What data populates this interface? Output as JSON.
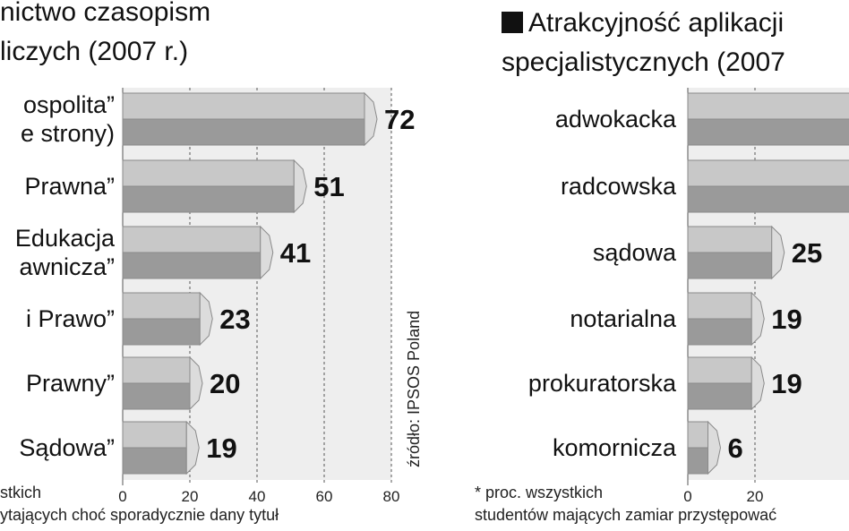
{
  "chart_data": [
    {
      "type": "bar",
      "orientation": "horizontal",
      "title_lines": [
        "nictwo czasopism",
        "liczych (2007 r.)"
      ],
      "categories": [
        [
          "ospolita”",
          "e strony)"
        ],
        [
          "Prawna”"
        ],
        [
          "Edukacja",
          "awnicza”"
        ],
        [
          "i Prawo”"
        ],
        [
          "Prawny”"
        ],
        [
          "Sądowa”"
        ]
      ],
      "values": [
        72,
        51,
        41,
        23,
        20,
        19
      ],
      "value_labels": [
        "72",
        "51",
        "41",
        "23",
        "20",
        "19"
      ],
      "xlim": [
        0,
        80
      ],
      "x_ticks": [
        "0",
        "20",
        "40",
        "60",
        "80"
      ],
      "gridlines": true,
      "source": "źródło: IPSOS Poland",
      "footnote_lines": [
        "stkich",
        "ytających choć sporadycznie dany tytuł"
      ]
    },
    {
      "type": "bar",
      "orientation": "horizontal",
      "title_lines": [
        "Atrakcyjność aplikacji",
        "specjalistycznych (2007"
      ],
      "categories": [
        [
          "adwokacka"
        ],
        [
          "radcowska"
        ],
        [
          "sądowa"
        ],
        [
          "notarialna"
        ],
        [
          "prokuratorska"
        ],
        [
          "komornicza"
        ]
      ],
      "values": [
        null,
        null,
        25,
        19,
        19,
        6
      ],
      "value_labels": [
        "",
        "",
        "25",
        "19",
        "19",
        "6"
      ],
      "xlim": [
        0,
        80
      ],
      "x_ticks": [
        "0",
        "20"
      ],
      "gridlines": true,
      "footnote_lines": [
        "* proc. wszystkich",
        "studentów mających zamiar przystępować"
      ]
    }
  ],
  "colors": {
    "bar_top": "#c8c8c8",
    "bar_bottom": "#9a9a9a",
    "bar_cap": "#dcdcdc",
    "bar_outline": "#8a8a8a",
    "plot_bg": "#eeeeee",
    "grid": "#555555",
    "text": "#111111"
  }
}
